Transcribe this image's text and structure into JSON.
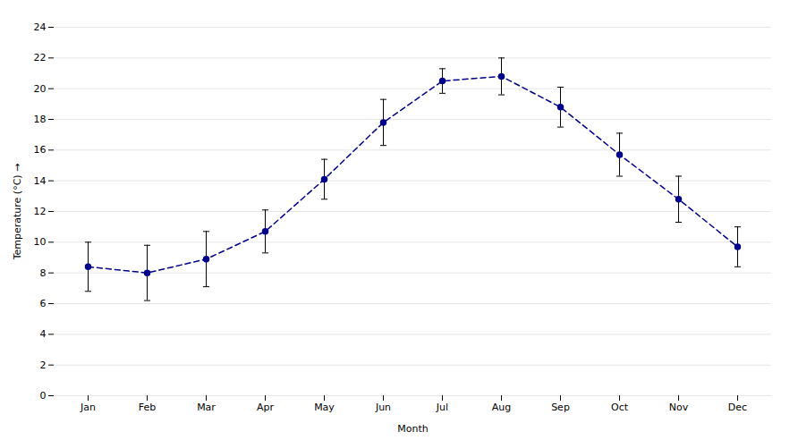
{
  "chart_data": {
    "type": "line",
    "xlabel": "Month",
    "ylabel": "Temperature (°C)",
    "categories": [
      "Jan",
      "Feb",
      "Mar",
      "Apr",
      "May",
      "Jun",
      "Jul",
      "Aug",
      "Sep",
      "Oct",
      "Nov",
      "Dec"
    ],
    "values": [
      8.4,
      8.0,
      8.9,
      10.7,
      14.1,
      17.8,
      20.5,
      20.8,
      18.8,
      15.7,
      12.8,
      9.7
    ],
    "errors": [
      1.6,
      1.8,
      1.8,
      1.4,
      1.3,
      1.5,
      0.8,
      1.2,
      1.3,
      1.4,
      1.5,
      1.3
    ],
    "color": "#00008B",
    "marker": "circle",
    "line_style": "dashed",
    "ylim": [
      0,
      24
    ],
    "yticks": [
      0,
      2,
      4,
      6,
      8,
      10,
      12,
      14,
      16,
      18,
      20,
      22,
      24
    ],
    "grid": true
  }
}
